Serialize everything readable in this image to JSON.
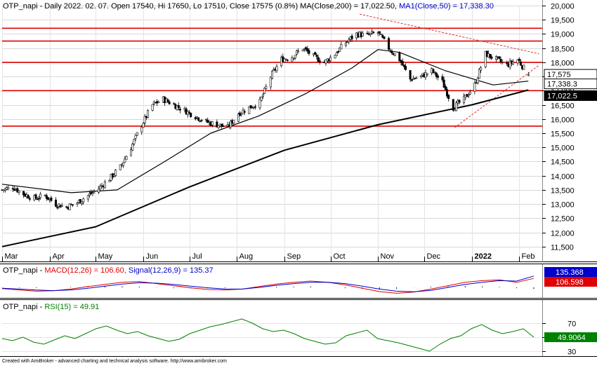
{
  "chart_data": [
    {
      "type": "candlestick",
      "ticker": "OTP_napi",
      "header": {
        "prefix": "OTP_napi - Daily 2022. 02. 07. Open 17540, Hi 17650, Lo 17510, Close 17575 (0.8%) ",
        "ma200_label": "MA(Close,200) = 17,022.50,",
        "ma50_label": "MA1(Close,50) = 17,338.30"
      },
      "last_bar": {
        "date": "2022-02-07",
        "open": 17540,
        "high": 17650,
        "low": 17510,
        "close": 17575
      },
      "ylim": [
        11000,
        20000
      ],
      "y_ticks": [
        11500,
        12000,
        12500,
        13000,
        13500,
        14000,
        14500,
        15000,
        15500,
        16000,
        16500,
        17000,
        17500,
        18000,
        18500,
        19000,
        19500,
        20000
      ],
      "y_tick_labels": [
        "11,500",
        "12,000",
        "12,500",
        "13,000",
        "13,500",
        "14,000",
        "14,500",
        "15,000",
        "15,500",
        "16,000",
        "16,500",
        "17,000",
        "17,500",
        "18,000",
        "18,500",
        "19,000",
        "19,500",
        "20,000"
      ],
      "x_axis": {
        "labels": [
          "Mar",
          "Apr",
          "May",
          "Jun",
          "Jul",
          "Aug",
          "Sep",
          "Oct",
          "Nov",
          "Dec",
          "2022",
          "Feb"
        ],
        "start_date": "2021-03-01",
        "end_date": "2022-02-07"
      },
      "price_path": [
        [
          "2021-03-01",
          13500
        ],
        [
          "2021-03-08",
          13600
        ],
        [
          "2021-03-15",
          13350
        ],
        [
          "2021-03-22",
          13200
        ],
        [
          "2021-03-29",
          13300
        ],
        [
          "2021-04-05",
          13000
        ],
        [
          "2021-04-12",
          12900
        ],
        [
          "2021-04-19",
          13050
        ],
        [
          "2021-04-26",
          13300
        ],
        [
          "2021-05-03",
          13550
        ],
        [
          "2021-05-10",
          13900
        ],
        [
          "2021-05-17",
          14300
        ],
        [
          "2021-05-24",
          15000
        ],
        [
          "2021-05-31",
          15800
        ],
        [
          "2021-06-07",
          16500
        ],
        [
          "2021-06-14",
          16700
        ],
        [
          "2021-06-21",
          16500
        ],
        [
          "2021-06-28",
          16300
        ],
        [
          "2021-07-05",
          16100
        ],
        [
          "2021-07-12",
          15900
        ],
        [
          "2021-07-19",
          15800
        ],
        [
          "2021-07-26",
          15700
        ],
        [
          "2021-08-02",
          16200
        ],
        [
          "2021-08-09",
          16400
        ],
        [
          "2021-08-16",
          16600
        ],
        [
          "2021-08-23",
          17500
        ],
        [
          "2021-08-30",
          18100
        ],
        [
          "2021-09-06",
          18200
        ],
        [
          "2021-09-13",
          18500
        ],
        [
          "2021-09-20",
          18200
        ],
        [
          "2021-09-27",
          18000
        ],
        [
          "2021-10-04",
          18300
        ],
        [
          "2021-10-11",
          18700
        ],
        [
          "2021-10-18",
          19000
        ],
        [
          "2021-10-25",
          18950
        ],
        [
          "2021-11-01",
          19050
        ],
        [
          "2021-11-08",
          18500
        ],
        [
          "2021-11-15",
          18100
        ],
        [
          "2021-11-22",
          17400
        ],
        [
          "2021-11-29",
          17500
        ],
        [
          "2021-12-06",
          17700
        ],
        [
          "2021-12-13",
          17300
        ],
        [
          "2021-12-20",
          16400
        ],
        [
          "2021-12-27",
          16700
        ],
        [
          "2022-01-03",
          17200
        ],
        [
          "2022-01-10",
          18300
        ],
        [
          "2022-01-17",
          18100
        ],
        [
          "2022-01-24",
          17900
        ],
        [
          "2022-01-31",
          18100
        ],
        [
          "2022-02-07",
          17575
        ]
      ],
      "ma200": [
        [
          "2021-03-01",
          11500
        ],
        [
          "2021-05-01",
          12200
        ],
        [
          "2021-07-01",
          13600
        ],
        [
          "2021-09-01",
          14900
        ],
        [
          "2021-11-01",
          15800
        ],
        [
          "2022-01-01",
          16500
        ],
        [
          "2022-02-07",
          17022.5
        ]
      ],
      "ma50": [
        [
          "2021-03-01",
          13700
        ],
        [
          "2021-04-15",
          13400
        ],
        [
          "2021-05-15",
          13500
        ],
        [
          "2021-06-15",
          14500
        ],
        [
          "2021-07-15",
          15500
        ],
        [
          "2021-08-15",
          16100
        ],
        [
          "2021-09-15",
          16900
        ],
        [
          "2021-10-15",
          17800
        ],
        [
          "2021-11-01",
          18450
        ],
        [
          "2021-11-15",
          18350
        ],
        [
          "2021-12-15",
          17700
        ],
        [
          "2022-01-15",
          17200
        ],
        [
          "2022-02-07",
          17338.3
        ]
      ],
      "horizontal_lines": [
        19200,
        18750,
        18000,
        17000,
        15750
      ],
      "trend_lines": [
        {
          "from": [
            "2021-10-20",
            19700
          ],
          "to": [
            "2022-02-14",
            18300
          ]
        },
        {
          "from": [
            "2021-12-21",
            15700
          ],
          "to": [
            "2022-02-14",
            17900
          ]
        }
      ],
      "price_badges": [
        {
          "label": "17,575",
          "bg": "#ffffff",
          "fg": "#000000"
        },
        {
          "label": "17,338.3",
          "bg": "#ffffff",
          "fg": "#000000"
        },
        {
          "label": "17,022.5",
          "bg": "#000000",
          "fg": "#ffffff"
        }
      ],
      "colors": {
        "candle": "#000000",
        "ma200": "#000000",
        "ma50": "#000000",
        "hline": "#e00000",
        "trend": "#e03030"
      }
    },
    {
      "type": "line",
      "header": {
        "prefix": "OTP_napi - ",
        "macd_label": "MACD(12,26) = 106.60,",
        "signal_label": "Signal(12,26,9) = 135.37"
      },
      "series": [
        {
          "name": "MACD(12,26)",
          "color": "#e00000",
          "values": [
            -15,
            -30,
            -45,
            -40,
            -20,
            10,
            35,
            60,
            70,
            45,
            20,
            -5,
            -25,
            -30,
            -20,
            10,
            40,
            60,
            75,
            60,
            30,
            -10,
            -50,
            -70,
            -55,
            -20,
            20,
            60,
            80,
            90,
            60,
            106.6
          ]
        },
        {
          "name": "Signal(12,26,9)",
          "color": "#0000cc",
          "values": [
            -10,
            -20,
            -32,
            -38,
            -30,
            -10,
            15,
            40,
            55,
            50,
            35,
            15,
            -5,
            -18,
            -20,
            0,
            25,
            45,
            60,
            62,
            45,
            15,
            -20,
            -45,
            -52,
            -35,
            0,
            35,
            60,
            80,
            75,
            135.37
          ]
        }
      ],
      "badges": [
        {
          "label": "135.368",
          "bg": "#0000cc",
          "fg": "#ffffff"
        },
        {
          "label": "106.598",
          "bg": "#e00000",
          "fg": "#ffffff"
        }
      ]
    },
    {
      "type": "line",
      "header": {
        "prefix": "OTP_napi - ",
        "rsi_label": "RSI(15) = 49.91"
      },
      "y_ticks": [
        30,
        50,
        70
      ],
      "y_tick_labels": [
        "30",
        "50",
        "70"
      ],
      "ylim": [
        25,
        85
      ],
      "series": [
        {
          "name": "RSI(15)",
          "color": "#008000",
          "values": [
            48,
            45,
            50,
            43,
            40,
            46,
            52,
            48,
            55,
            62,
            66,
            60,
            55,
            58,
            52,
            48,
            44,
            47,
            55,
            60,
            65,
            68,
            72,
            76,
            70,
            62,
            58,
            60,
            55,
            48,
            44,
            40,
            42,
            52,
            56,
            60,
            48,
            45,
            42,
            38,
            34,
            30,
            40,
            48,
            52,
            62,
            68,
            60,
            55,
            58,
            62,
            49.91
          ]
        }
      ],
      "badges": [
        {
          "label": "49.9064",
          "bg": "#008000",
          "fg": "#ffffff"
        }
      ]
    }
  ],
  "footer": "Created with AmiBroker - advanced charting and technical analysis software. http://www.amibroker.com"
}
